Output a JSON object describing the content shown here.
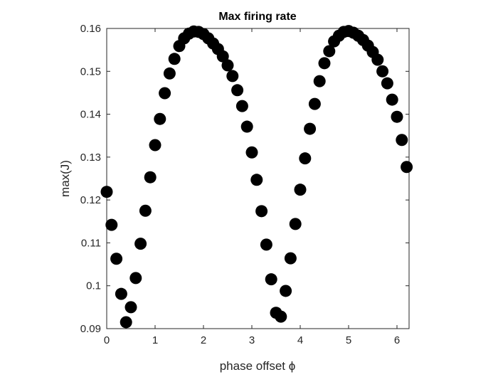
{
  "chart_data": {
    "type": "scatter",
    "title": "Max firing rate",
    "xlabel": "phase offset ϕ",
    "ylabel": "max(J)",
    "x": [
      0,
      0.1,
      0.2,
      0.3,
      0.4,
      0.5,
      0.6,
      0.7,
      0.8,
      0.9,
      1.0,
      1.1,
      1.2,
      1.3,
      1.4,
      1.5,
      1.6,
      1.7,
      1.8,
      1.9,
      2.0,
      2.1,
      2.2,
      2.3,
      2.4,
      2.5,
      2.6,
      2.7,
      2.8,
      2.9,
      3.0,
      3.1,
      3.2,
      3.3,
      3.4,
      3.5,
      3.6,
      3.7,
      3.8,
      3.9,
      4.0,
      4.1,
      4.2,
      4.3,
      4.4,
      4.5,
      4.6,
      4.7,
      4.8,
      4.9,
      5.0,
      5.1,
      5.2,
      5.3,
      5.4,
      5.5,
      5.6,
      5.7,
      5.8,
      5.9,
      6.0,
      6.1,
      6.2
    ],
    "values": [
      0.1219,
      0.1142,
      0.1063,
      0.0981,
      0.0915,
      0.095,
      0.1018,
      0.1098,
      0.1175,
      0.1253,
      0.1328,
      0.1389,
      0.1449,
      0.1495,
      0.1529,
      0.1559,
      0.1577,
      0.1588,
      0.1593,
      0.1592,
      0.1587,
      0.1577,
      0.1565,
      0.1552,
      0.1535,
      0.1514,
      0.1489,
      0.1456,
      0.1419,
      0.1371,
      0.1311,
      0.1247,
      0.1174,
      0.1096,
      0.1015,
      0.0937,
      0.0928,
      0.0988,
      0.1064,
      0.1144,
      0.1224,
      0.1297,
      0.1366,
      0.1424,
      0.1477,
      0.1519,
      0.1547,
      0.157,
      0.1583,
      0.1592,
      0.1594,
      0.159,
      0.1583,
      0.1573,
      0.156,
      0.1545,
      0.1527,
      0.15,
      0.1472,
      0.1434,
      0.1394,
      0.134,
      0.1277
    ],
    "color": "#000000",
    "xlim": [
      0,
      6.25
    ],
    "xticks": [
      0,
      1,
      2,
      3,
      4,
      5,
      6
    ],
    "ylim": [
      0.09,
      0.16
    ],
    "yticks": [
      0.09,
      0.1,
      0.11,
      0.12,
      0.13,
      0.14,
      0.15,
      0.16
    ]
  }
}
